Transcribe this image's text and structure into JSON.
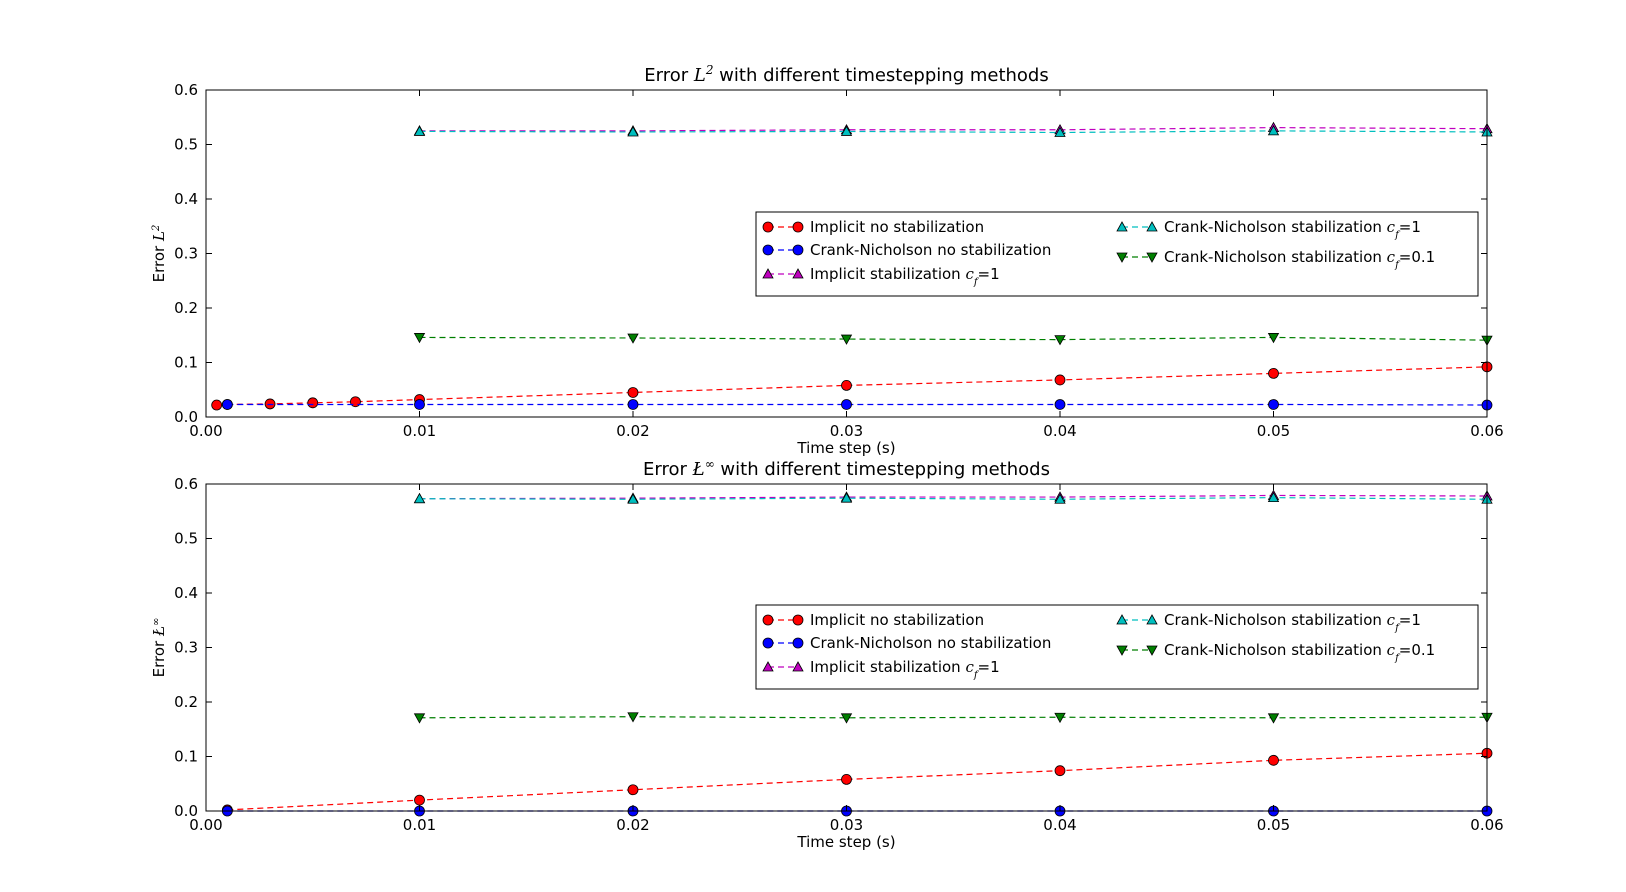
{
  "chart_data": [
    {
      "type": "line",
      "title": "Error L² with different timestepping methods",
      "title_parts": {
        "pre": "Error ",
        "sym": "L",
        "sup": "2",
        "post": " with different timestepping methods"
      },
      "xlabel": "Time step (s)",
      "ylabel": "Error L²",
      "ylabel_parts": {
        "pre": "Error ",
        "sym": "L",
        "sup": "2"
      },
      "xlim": [
        0,
        0.06
      ],
      "ylim": [
        0,
        0.6
      ],
      "xticks": [
        "0.00",
        "0.01",
        "0.02",
        "0.03",
        "0.04",
        "0.05",
        "0.06"
      ],
      "yticks": [
        "0.0",
        "0.1",
        "0.2",
        "0.3",
        "0.4",
        "0.5",
        "0.6"
      ],
      "grid": false,
      "legend_position": "center-right",
      "series": [
        {
          "name": "Implicit no stabilization",
          "label_parts": {
            "pre": "Implicit no stabilization"
          },
          "color": "#ff0000",
          "marker": "circle",
          "x": [
            0.0005,
            0.001,
            0.003,
            0.005,
            0.007,
            0.01,
            0.02,
            0.03,
            0.04,
            0.05,
            0.06
          ],
          "y": [
            0.022,
            0.023,
            0.024,
            0.026,
            0.028,
            0.032,
            0.045,
            0.058,
            0.068,
            0.08,
            0.092
          ]
        },
        {
          "name": "Crank-Nicholson no stabilization",
          "label_parts": {
            "pre": "Crank-Nicholson no stabilization"
          },
          "color": "#0000ff",
          "marker": "circle",
          "x": [
            0.001,
            0.01,
            0.02,
            0.03,
            0.04,
            0.05,
            0.06
          ],
          "y": [
            0.023,
            0.023,
            0.023,
            0.023,
            0.023,
            0.023,
            0.022
          ]
        },
        {
          "name": "Implicit stabilization c_f=1",
          "label_parts": {
            "pre": "Implicit stabilization ",
            "sym": "c",
            "sub": "f",
            "post": "=1"
          },
          "color": "#bf00bf",
          "marker": "triangle-up",
          "x": [
            0.01,
            0.02,
            0.03,
            0.04,
            0.05,
            0.06
          ],
          "y": [
            0.525,
            0.525,
            0.527,
            0.527,
            0.531,
            0.529
          ]
        },
        {
          "name": "Crank-Nicholson stabilization c_f=1",
          "label_parts": {
            "pre": "Crank-Nicholson stabilization ",
            "sym": "c",
            "sub": "f",
            "post": "=1"
          },
          "color": "#00bfbf",
          "marker": "triangle-up",
          "x": [
            0.01,
            0.02,
            0.03,
            0.04,
            0.05,
            0.06
          ],
          "y": [
            0.524,
            0.523,
            0.524,
            0.522,
            0.525,
            0.523
          ]
        },
        {
          "name": "Crank-Nicholson stabilization c_f=0.1",
          "label_parts": {
            "pre": "Crank-Nicholson stabilization ",
            "sym": "c",
            "sub": "f",
            "post": "=0.1"
          },
          "color": "#007f00",
          "marker": "triangle-down",
          "x": [
            0.01,
            0.02,
            0.03,
            0.04,
            0.05,
            0.06
          ],
          "y": [
            0.146,
            0.145,
            0.143,
            0.142,
            0.146,
            0.141
          ]
        }
      ]
    },
    {
      "type": "line",
      "title": "Error L^∞ with different timestepping methods",
      "title_parts": {
        "pre": "Error ",
        "sym": "Ł",
        "sup": "∞",
        "post": " with different timestepping methods"
      },
      "xlabel": "Time step (s)",
      "ylabel": "Error Ł^∞",
      "ylabel_parts": {
        "pre": "Error ",
        "sym": "Ł",
        "sup": "∞"
      },
      "xlim": [
        0,
        0.06
      ],
      "ylim": [
        0,
        0.6
      ],
      "xticks": [
        "0.00",
        "0.01",
        "0.02",
        "0.03",
        "0.04",
        "0.05",
        "0.06"
      ],
      "yticks": [
        "0.0",
        "0.1",
        "0.2",
        "0.3",
        "0.4",
        "0.5",
        "0.6"
      ],
      "grid": false,
      "legend_position": "center-right",
      "series": [
        {
          "name": "Implicit no stabilization",
          "label_parts": {
            "pre": "Implicit no stabilization"
          },
          "color": "#ff0000",
          "marker": "circle",
          "x": [
            0.001,
            0.01,
            0.02,
            0.03,
            0.04,
            0.05,
            0.06
          ],
          "y": [
            0.002,
            0.02,
            0.039,
            0.058,
            0.074,
            0.093,
            0.106
          ]
        },
        {
          "name": "Crank-Nicholson no stabilization",
          "label_parts": {
            "pre": "Crank-Nicholson no stabilization"
          },
          "color": "#0000ff",
          "marker": "circle",
          "x": [
            0.001,
            0.01,
            0.02,
            0.03,
            0.04,
            0.05,
            0.06
          ],
          "y": [
            0.0,
            0.0,
            0.0,
            0.0,
            0.0,
            0.0,
            0.0
          ]
        },
        {
          "name": "Implicit stabilization c_f=1",
          "label_parts": {
            "pre": "Implicit stabilization ",
            "sym": "c",
            "sub": "f",
            "post": "=1"
          },
          "color": "#bf00bf",
          "marker": "triangle-up",
          "x": [
            0.01,
            0.02,
            0.03,
            0.04,
            0.05,
            0.06
          ],
          "y": [
            0.573,
            0.574,
            0.576,
            0.576,
            0.579,
            0.578
          ]
        },
        {
          "name": "Crank-Nicholson stabilization c_f=1",
          "label_parts": {
            "pre": "Crank-Nicholson stabilization ",
            "sym": "c",
            "sub": "f",
            "post": "=1"
          },
          "color": "#00bfbf",
          "marker": "triangle-up",
          "x": [
            0.01,
            0.02,
            0.03,
            0.04,
            0.05,
            0.06
          ],
          "y": [
            0.573,
            0.572,
            0.574,
            0.572,
            0.575,
            0.572
          ]
        },
        {
          "name": "Crank-Nicholson stabilization c_f=0.1",
          "label_parts": {
            "pre": "Crank-Nicholson stabilization ",
            "sym": "c",
            "sub": "f",
            "post": "=0.1"
          },
          "color": "#007f00",
          "marker": "triangle-down",
          "x": [
            0.01,
            0.02,
            0.03,
            0.04,
            0.05,
            0.06
          ],
          "y": [
            0.171,
            0.173,
            0.171,
            0.172,
            0.171,
            0.172
          ]
        }
      ]
    }
  ]
}
